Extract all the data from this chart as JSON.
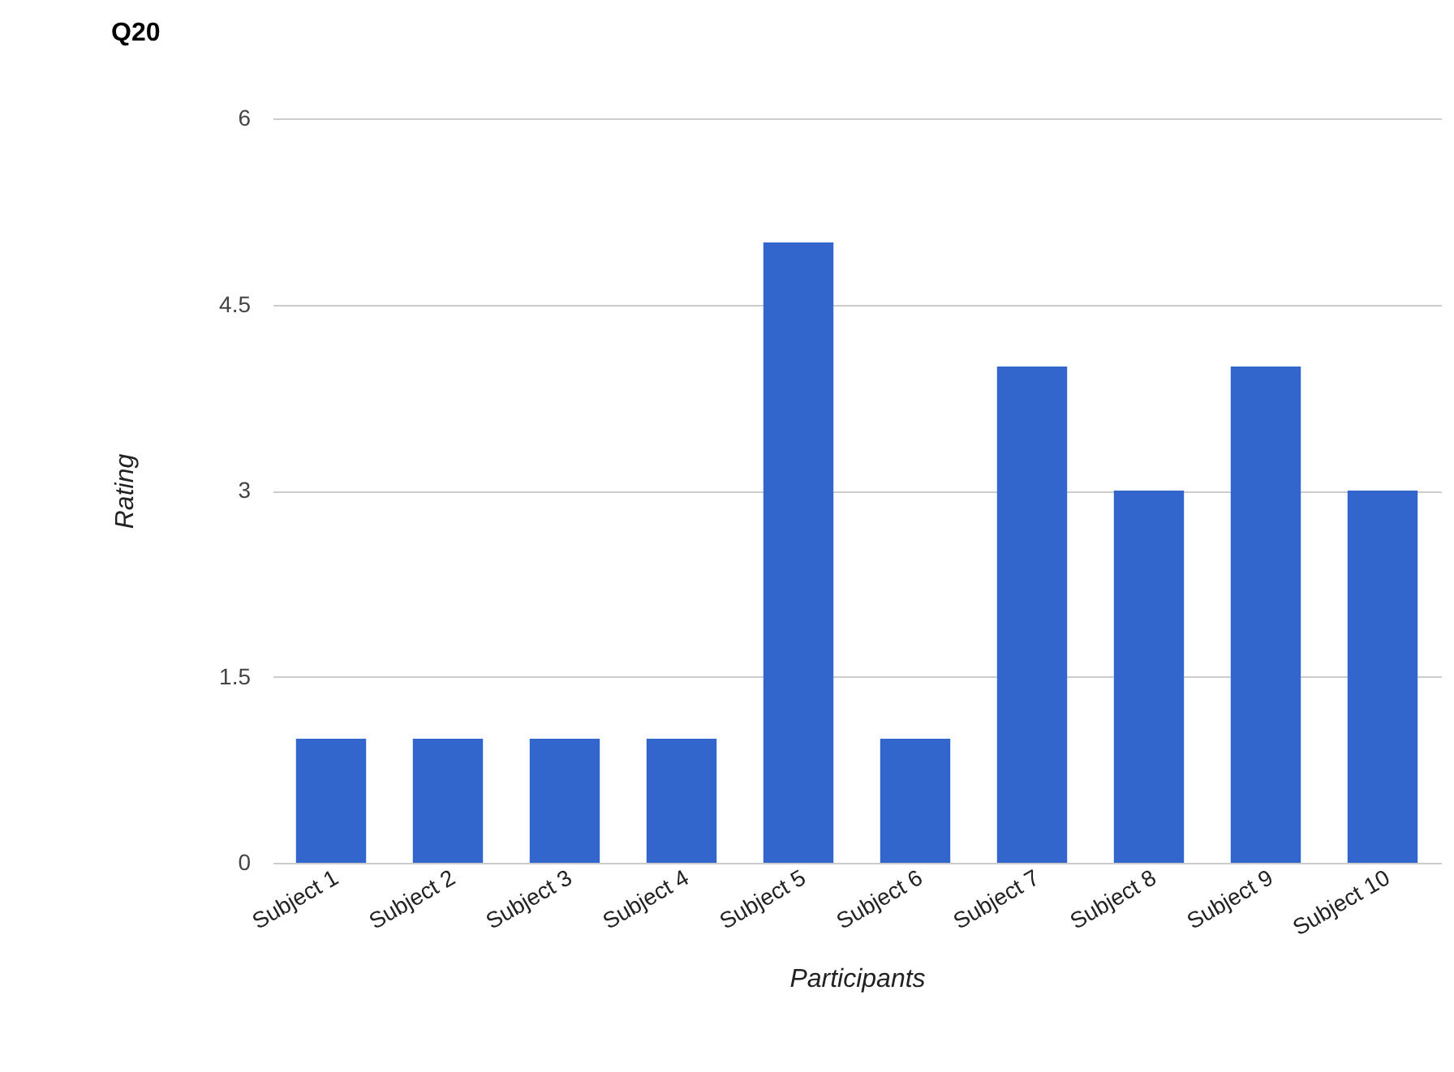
{
  "chart_data": {
    "type": "bar",
    "title": "Q20",
    "xlabel": "Participants",
    "ylabel": "Rating",
    "categories": [
      "Subject 1",
      "Subject 2",
      "Subject 3",
      "Subject 4",
      "Subject 5",
      "Subject 6",
      "Subject 7",
      "Subject 8",
      "Subject 9",
      "Subject 10"
    ],
    "values": [
      1,
      1,
      1,
      1,
      5,
      1,
      4,
      3,
      4,
      3
    ],
    "color": "#3366cc",
    "ylim": [
      0,
      6
    ],
    "yticks": [
      0,
      1.5,
      3,
      4.5,
      6
    ],
    "grid": "y"
  }
}
